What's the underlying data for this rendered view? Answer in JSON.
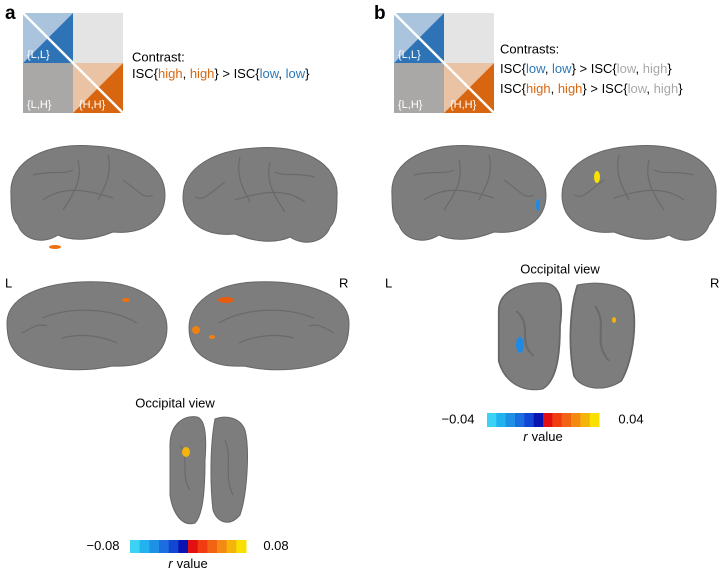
{
  "panels": [
    {
      "label": "a",
      "matrix": {
        "cells": [
          "{L,L}",
          "{L,H}",
          "{H,H}"
        ]
      },
      "contrast_title": "Contrast:",
      "contrasts": [
        [
          {
            "text": "ISC{"
          },
          {
            "text": "high",
            "color": "#d8650f"
          },
          {
            "text": ", "
          },
          {
            "text": "high",
            "color": "#d8650f"
          },
          {
            "text": "} > ISC{"
          },
          {
            "text": "low",
            "color": "#2d78b8"
          },
          {
            "text": ", "
          },
          {
            "text": "low",
            "color": "#2d78b8"
          },
          {
            "text": "}"
          }
        ]
      ],
      "hemispheres": [
        "L",
        "R"
      ],
      "occipital_title": "Occipital view",
      "colorbar": {
        "colors": [
          "#3cd2f5",
          "#22b2ee",
          "#1e90e6",
          "#1c6ee0",
          "#1446d4",
          "#0b14b0",
          "#e21010",
          "#f03c10",
          "#f26414",
          "#f48a14",
          "#f5b40a",
          "#f8e000"
        ],
        "ticks": [
          {
            "value": -0.08,
            "label": "−0.08"
          },
          0.08
        ],
        "variable": "r",
        "label": "value"
      }
    },
    {
      "label": "b",
      "matrix": {
        "cells": [
          "{L,L}",
          "{L,H}",
          "{H,H}"
        ]
      },
      "contrast_title": "Contrasts:",
      "contrasts": [
        [
          {
            "text": "ISC{"
          },
          {
            "text": "low",
            "color": "#2d78b8"
          },
          {
            "text": ", "
          },
          {
            "text": "low",
            "color": "#2d78b8"
          },
          {
            "text": "} > ISC{"
          },
          {
            "text": "low",
            "color": "#a8a8a8"
          },
          {
            "text": ", "
          },
          {
            "text": "high",
            "color": "#a8a8a8"
          },
          {
            "text": "}"
          }
        ],
        [
          {
            "text": "ISC{"
          },
          {
            "text": "high",
            "color": "#d8650f"
          },
          {
            "text": ", "
          },
          {
            "text": "high",
            "color": "#d8650f"
          },
          {
            "text": "} > ISC{"
          },
          {
            "text": "low",
            "color": "#a8a8a8"
          },
          {
            "text": ", "
          },
          {
            "text": "high",
            "color": "#a8a8a8"
          },
          {
            "text": "}"
          }
        ]
      ],
      "hemispheres": [
        "L",
        "R"
      ],
      "occipital_title": "Occipital view",
      "colorbar": {
        "colors": [
          "#3cd2f5",
          "#22b2ee",
          "#1e90e6",
          "#1c6ee0",
          "#1446d4",
          "#0b14b0",
          "#e21010",
          "#f03c10",
          "#f26414",
          "#f48a14",
          "#f5b40a",
          "#f8e000"
        ],
        "ticks": [
          {
            "value": -0.04,
            "label": "−0.04"
          },
          0.04
        ],
        "variable": "r",
        "label": "value"
      }
    }
  ]
}
